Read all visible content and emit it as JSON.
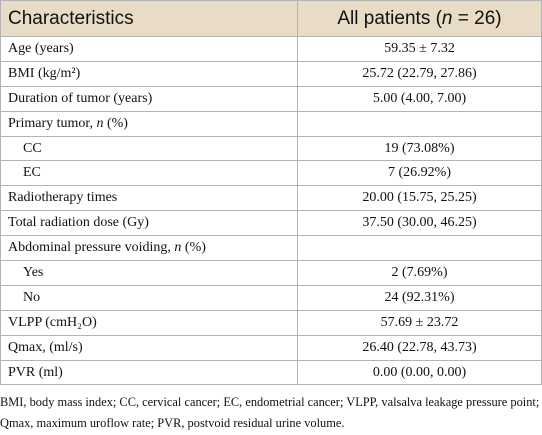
{
  "table": {
    "header": [
      "Characteristics",
      [
        "All patients (",
        "n",
        " = 26)"
      ]
    ],
    "rows": [
      {
        "label": "Age (years)",
        "value": "59.35 ± 7.32"
      },
      {
        "label": "BMI (kg/m²)",
        "value": "25.72 (22.79, 27.86)"
      },
      {
        "label": "Duration of tumor (years)",
        "value": "5.00 (4.00, 7.00)"
      },
      {
        "label": [
          "Primary tumor, ",
          "n",
          " (%)"
        ],
        "value": null
      },
      {
        "label": "CC",
        "value": "19 (73.08%)",
        "indent": true
      },
      {
        "label": "EC",
        "value": "7 (26.92%)",
        "indent": true
      },
      {
        "label": "Radiotherapy times",
        "value": "20.00 (15.75, 25.25)"
      },
      {
        "label": "Total radiation dose (Gy)",
        "value": "37.50 (30.00, 46.25)"
      },
      {
        "label": [
          "Abdominal pressure voiding, ",
          "n",
          " (%)"
        ],
        "value": null
      },
      {
        "label": "Yes",
        "value": "2 (7.69%)",
        "indent": true
      },
      {
        "label": "No",
        "value": "24 (92.31%)",
        "indent": true
      },
      {
        "label": "VLPP (cmH₂O)",
        "value": "57.69 ± 23.72"
      },
      {
        "label": "Qmax, (ml/s)",
        "value": "26.40 (22.78, 43.73)"
      },
      {
        "label": "PVR (ml)",
        "value": "0.00 (0.00, 0.00)"
      }
    ]
  },
  "footnote": "BMI, body mass index; CC, cervical cancer; EC, endometrial cancer; VLPP, valsalva leakage pressure point; Qmax, maximum uroflow rate; PVR, postvoid residual urine volume."
}
